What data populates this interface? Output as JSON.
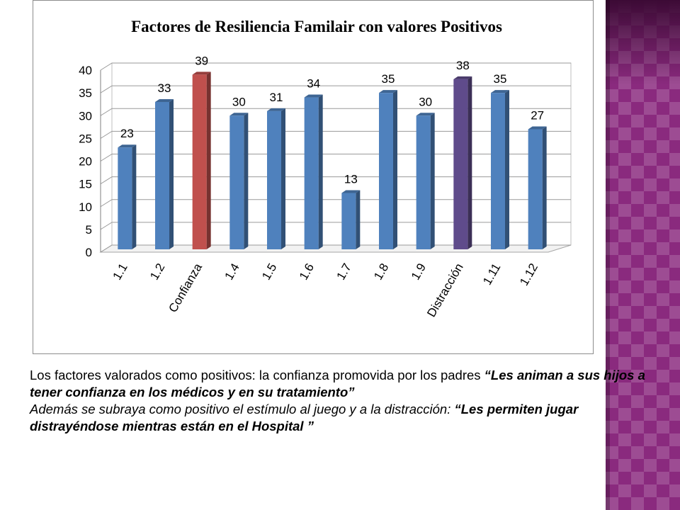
{
  "theme": {
    "side_band_color": "#8a2a7e",
    "bar_blue": "#4f81bd",
    "bar_red": "#c0504d",
    "bar_purple": "#5f4b8b"
  },
  "chart_data": {
    "type": "bar",
    "title": "Factores de Resiliencia Familair con valores Positivos",
    "categories": [
      "1.1",
      "1.2",
      "Confianza",
      "1.4",
      "1.5",
      "1.6",
      "1.7",
      "1.8",
      "1.9",
      "Distracción",
      "1.11",
      "1.12"
    ],
    "values": [
      23,
      33,
      39,
      30,
      31,
      34,
      13,
      35,
      30,
      38,
      35,
      27
    ],
    "colors": [
      "#4f81bd",
      "#4f81bd",
      "#c0504d",
      "#4f81bd",
      "#4f81bd",
      "#4f81bd",
      "#4f81bd",
      "#4f81bd",
      "#4f81bd",
      "#5f4b8b",
      "#4f81bd",
      "#4f81bd"
    ],
    "ylim": [
      0,
      40
    ],
    "yticks": [
      "0",
      "5",
      "10",
      "15",
      "20",
      "25",
      "30",
      "35",
      "40"
    ],
    "grid": true,
    "style": "3d-column",
    "xlabel": "",
    "ylabel": ""
  },
  "caption": {
    "line1_plain": "Los factores valorados como positivos: la confianza promovida por los padres ",
    "line1_quote": "“Les animan a sus hijos a tener confianza en los médicos y en su tratamiento”",
    "line2_plain": "Además se subraya como positivo el estímulo al juego y a la distracción: ",
    "line2_quote": "“Les permiten jugar distrayéndose mientras están en el Hospital ”"
  }
}
